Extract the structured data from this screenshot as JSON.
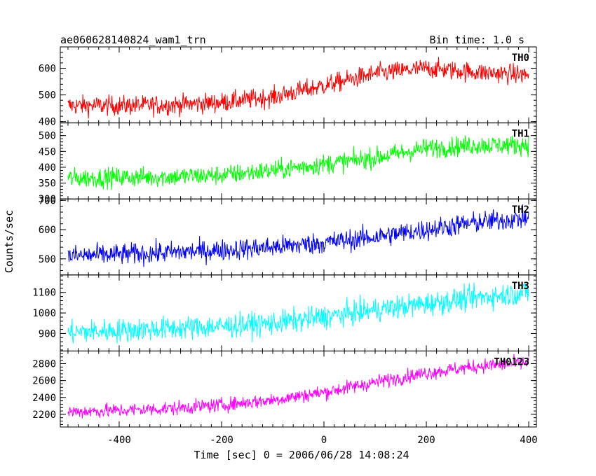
{
  "chart_data": {
    "type": "line",
    "title": "ae060628140824_wam1_trn",
    "bin_time_label": "Bin time: 1.0 s",
    "xlabel": "Time [sec] 0 = 2006/06/28 14:08:24",
    "ylabel": "Counts/sec",
    "xlim": [
      -515,
      415
    ],
    "xticks": [
      -400,
      -200,
      0,
      200,
      400
    ],
    "grid": false,
    "panels": [
      {
        "name": "TH0",
        "color": "#ff0000",
        "ylim": [
          395,
          680
        ],
        "yticks": [
          400,
          500,
          600
        ],
        "x": [
          -500,
          -400,
          -300,
          -200,
          -100,
          0,
          100,
          200,
          300,
          400
        ],
        "y": [
          460,
          460,
          462,
          472,
          492,
          535,
          580,
          600,
          585,
          575
        ],
        "noise_amplitude": 35
      },
      {
        "name": "TH1",
        "color": "#00ff00",
        "ylim": [
          300,
          540
        ],
        "yticks": [
          300,
          350,
          400,
          450,
          500
        ],
        "x": [
          -500,
          -400,
          -300,
          -200,
          -100,
          0,
          100,
          200,
          300,
          400
        ],
        "y": [
          365,
          368,
          370,
          375,
          390,
          410,
          430,
          460,
          470,
          470
        ],
        "noise_amplitude": 30
      },
      {
        "name": "TH2",
        "color": "#0000ff",
        "ylim": [
          445,
          705
        ],
        "yticks": [
          500,
          600,
          700
        ],
        "x": [
          -500,
          -400,
          -300,
          -200,
          -100,
          0,
          100,
          200,
          300,
          400
        ],
        "y": [
          510,
          515,
          522,
          530,
          540,
          555,
          575,
          600,
          625,
          640
        ],
        "noise_amplitude": 35
      },
      {
        "name": "TH3",
        "color": "#00ffff",
        "ylim": [
          815,
          1185
        ],
        "yticks": [
          900,
          1000,
          1100
        ],
        "x": [
          -500,
          -400,
          -300,
          -200,
          -100,
          0,
          100,
          200,
          300,
          400
        ],
        "y": [
          905,
          915,
          925,
          935,
          950,
          980,
          1015,
          1045,
          1075,
          1100
        ],
        "noise_amplitude": 55
      },
      {
        "name": "TH0123",
        "color": "#ff00ff",
        "ylim": [
          2050,
          2950
        ],
        "yticks": [
          2200,
          2400,
          2600,
          2800
        ],
        "x": [
          -500,
          -400,
          -300,
          -200,
          -100,
          0,
          100,
          200,
          300,
          400
        ],
        "y": [
          2230,
          2245,
          2270,
          2310,
          2370,
          2460,
          2580,
          2690,
          2770,
          2810
        ],
        "noise_amplitude": 80
      }
    ]
  }
}
